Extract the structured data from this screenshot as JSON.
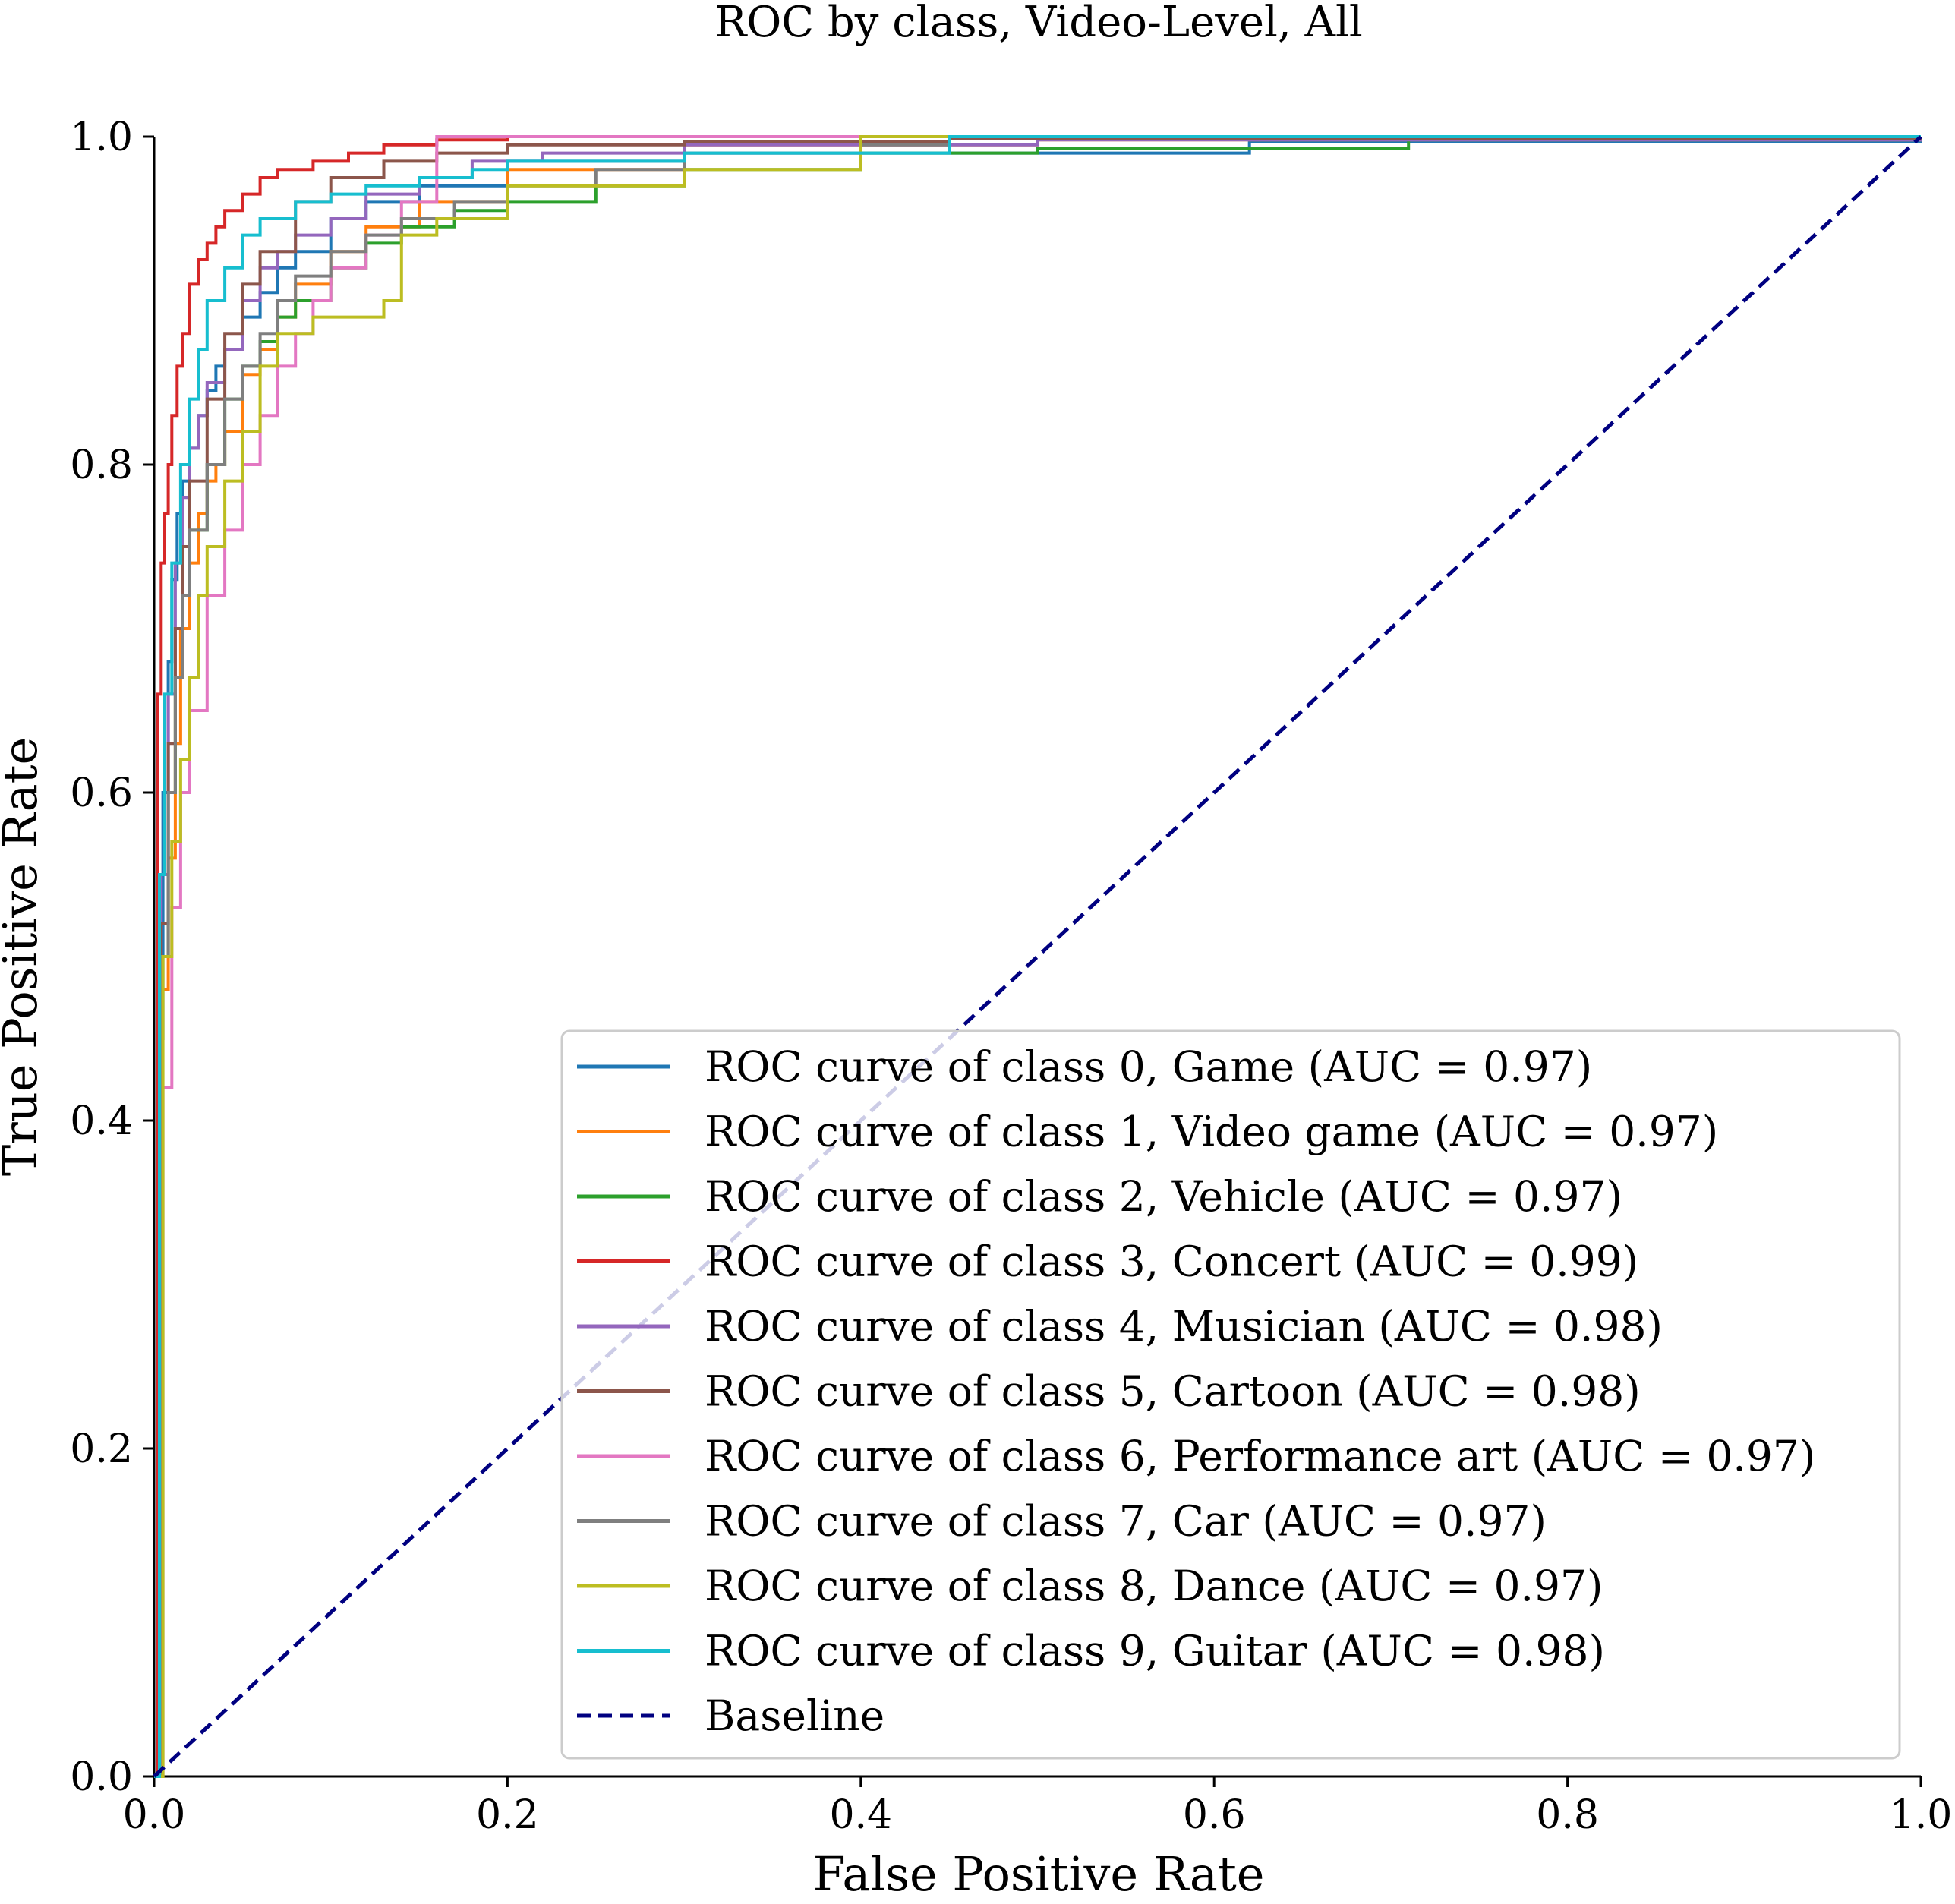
{
  "chart_data": {
    "type": "line",
    "title": "ROC by class, Video-Level, All",
    "xlabel": "False Positive Rate",
    "ylabel": "True Positive Rate",
    "xlim": [
      0.0,
      1.0
    ],
    "ylim": [
      0.0,
      1.0
    ],
    "xticks": [
      "0.0",
      "0.2",
      "0.4",
      "0.6",
      "0.8",
      "1.0"
    ],
    "yticks": [
      "0.0",
      "0.2",
      "0.4",
      "0.6",
      "0.8",
      "1.0"
    ],
    "grid": false,
    "legend_position": "lower-right",
    "series": [
      {
        "name": "ROC curve of class 0, Game (AUC = 0.97)",
        "color": "#1f77b4",
        "x": [
          0,
          0.002,
          0.005,
          0.008,
          0.01,
          0.013,
          0.016,
          0.02,
          0.025,
          0.03,
          0.035,
          0.04,
          0.05,
          0.06,
          0.07,
          0.08,
          0.1,
          0.12,
          0.15,
          0.2,
          0.3,
          0.62,
          1.0
        ],
        "y": [
          0,
          0.45,
          0.6,
          0.68,
          0.73,
          0.77,
          0.79,
          0.81,
          0.83,
          0.845,
          0.86,
          0.87,
          0.89,
          0.905,
          0.92,
          0.93,
          0.95,
          0.96,
          0.97,
          0.985,
          0.99,
          0.997,
          1.0
        ]
      },
      {
        "name": "ROC curve of class 1, Video game (AUC = 0.97)",
        "color": "#ff7f0e",
        "x": [
          0,
          0.004,
          0.008,
          0.012,
          0.015,
          0.02,
          0.025,
          0.03,
          0.035,
          0.04,
          0.05,
          0.06,
          0.07,
          0.08,
          0.1,
          0.12,
          0.15,
          0.2,
          0.3,
          0.5,
          1.0
        ],
        "y": [
          0,
          0.48,
          0.56,
          0.63,
          0.7,
          0.74,
          0.77,
          0.79,
          0.8,
          0.82,
          0.855,
          0.87,
          0.89,
          0.91,
          0.93,
          0.945,
          0.96,
          0.98,
          0.995,
          0.998,
          1.0
        ]
      },
      {
        "name": "ROC curve of class 2, Vehicle (AUC = 0.97)",
        "color": "#2ca02c",
        "x": [
          0,
          0.004,
          0.008,
          0.012,
          0.016,
          0.02,
          0.03,
          0.04,
          0.05,
          0.06,
          0.07,
          0.08,
          0.1,
          0.12,
          0.14,
          0.17,
          0.2,
          0.25,
          0.3,
          0.4,
          0.5,
          0.71,
          0.71,
          1.0
        ],
        "y": [
          0,
          0.5,
          0.6,
          0.67,
          0.72,
          0.76,
          0.8,
          0.84,
          0.86,
          0.875,
          0.89,
          0.9,
          0.92,
          0.935,
          0.945,
          0.955,
          0.96,
          0.97,
          0.98,
          0.99,
          0.993,
          0.995,
          1.0,
          1.0
        ]
      },
      {
        "name": "ROC curve of class 3, Concert (AUC = 0.99)",
        "color": "#d62728",
        "x": [
          0,
          0.002,
          0.004,
          0.006,
          0.008,
          0.01,
          0.013,
          0.016,
          0.02,
          0.025,
          0.03,
          0.035,
          0.04,
          0.05,
          0.06,
          0.07,
          0.09,
          0.11,
          0.13,
          0.16,
          0.2,
          0.3,
          1.0
        ],
        "y": [
          0,
          0.66,
          0.74,
          0.77,
          0.8,
          0.83,
          0.86,
          0.88,
          0.91,
          0.925,
          0.935,
          0.945,
          0.955,
          0.965,
          0.975,
          0.98,
          0.985,
          0.99,
          0.995,
          0.998,
          1.0,
          1.0,
          1.0
        ]
      },
      {
        "name": "ROC curve of class 4, Musician (AUC = 0.98)",
        "color": "#9467bd",
        "x": [
          0,
          0.004,
          0.008,
          0.012,
          0.016,
          0.02,
          0.025,
          0.03,
          0.04,
          0.05,
          0.06,
          0.07,
          0.08,
          0.1,
          0.12,
          0.15,
          0.18,
          0.22,
          0.3,
          0.5,
          1.0
        ],
        "y": [
          0,
          0.55,
          0.66,
          0.74,
          0.78,
          0.81,
          0.83,
          0.85,
          0.87,
          0.9,
          0.92,
          0.93,
          0.94,
          0.95,
          0.965,
          0.975,
          0.985,
          0.99,
          0.995,
          0.998,
          1.0
        ]
      },
      {
        "name": "ROC curve of class 5, Cartoon (AUC = 0.98)",
        "color": "#8c564b",
        "x": [
          0,
          0.004,
          0.008,
          0.012,
          0.016,
          0.02,
          0.03,
          0.04,
          0.05,
          0.06,
          0.08,
          0.1,
          0.13,
          0.16,
          0.2,
          0.3,
          0.45,
          1.0
        ],
        "y": [
          0,
          0.52,
          0.63,
          0.7,
          0.75,
          0.79,
          0.84,
          0.88,
          0.91,
          0.93,
          0.96,
          0.975,
          0.985,
          0.99,
          0.995,
          0.997,
          0.999,
          1.0
        ]
      },
      {
        "name": "ROC curve of class 6, Performance art (AUC = 0.97)",
        "color": "#e377c2",
        "x": [
          0,
          0.005,
          0.01,
          0.015,
          0.02,
          0.03,
          0.04,
          0.05,
          0.06,
          0.07,
          0.08,
          0.09,
          0.1,
          0.12,
          0.14,
          0.16,
          0.16,
          0.2,
          0.38,
          1.0
        ],
        "y": [
          0,
          0.42,
          0.53,
          0.6,
          0.65,
          0.72,
          0.76,
          0.8,
          0.83,
          0.86,
          0.88,
          0.9,
          0.92,
          0.94,
          0.96,
          0.97,
          1.0,
          1.0,
          1.0,
          1.0
        ]
      },
      {
        "name": "ROC curve of class 7, Car (AUC = 0.97)",
        "color": "#7f7f7f",
        "x": [
          0,
          0.004,
          0.008,
          0.012,
          0.016,
          0.02,
          0.03,
          0.04,
          0.05,
          0.06,
          0.07,
          0.08,
          0.1,
          0.12,
          0.14,
          0.17,
          0.2,
          0.25,
          0.3,
          0.4,
          0.45,
          1.0
        ],
        "y": [
          0,
          0.5,
          0.6,
          0.67,
          0.72,
          0.76,
          0.8,
          0.84,
          0.86,
          0.88,
          0.9,
          0.915,
          0.93,
          0.94,
          0.95,
          0.96,
          0.97,
          0.98,
          0.99,
          0.995,
          1.0,
          1.0
        ]
      },
      {
        "name": "ROC curve of class 8, Dance (AUC = 0.97)",
        "color": "#bcbd22",
        "x": [
          0,
          0.005,
          0.01,
          0.015,
          0.02,
          0.025,
          0.03,
          0.04,
          0.05,
          0.06,
          0.07,
          0.09,
          0.12,
          0.13,
          0.14,
          0.16,
          0.2,
          0.3,
          0.4,
          0.45,
          1.0
        ],
        "y": [
          0,
          0.5,
          0.57,
          0.62,
          0.67,
          0.72,
          0.75,
          0.79,
          0.82,
          0.86,
          0.88,
          0.89,
          0.89,
          0.9,
          0.94,
          0.95,
          0.97,
          0.98,
          1.0,
          1.0,
          1.0
        ]
      },
      {
        "name": "ROC curve of class 9, Guitar (AUC = 0.98)",
        "color": "#17becf",
        "x": [
          0,
          0.003,
          0.006,
          0.01,
          0.015,
          0.02,
          0.025,
          0.03,
          0.04,
          0.05,
          0.06,
          0.08,
          0.1,
          0.12,
          0.15,
          0.18,
          0.2,
          0.3,
          0.45,
          0.45,
          1.0
        ],
        "y": [
          0,
          0.55,
          0.66,
          0.74,
          0.8,
          0.84,
          0.87,
          0.9,
          0.92,
          0.94,
          0.95,
          0.96,
          0.965,
          0.97,
          0.975,
          0.98,
          0.985,
          0.99,
          0.99,
          1.0,
          1.0
        ]
      }
    ],
    "baseline": {
      "name": "Baseline",
      "color": "#000080",
      "style": "dashed",
      "x": [
        0,
        1
      ],
      "y": [
        0,
        1
      ]
    }
  }
}
